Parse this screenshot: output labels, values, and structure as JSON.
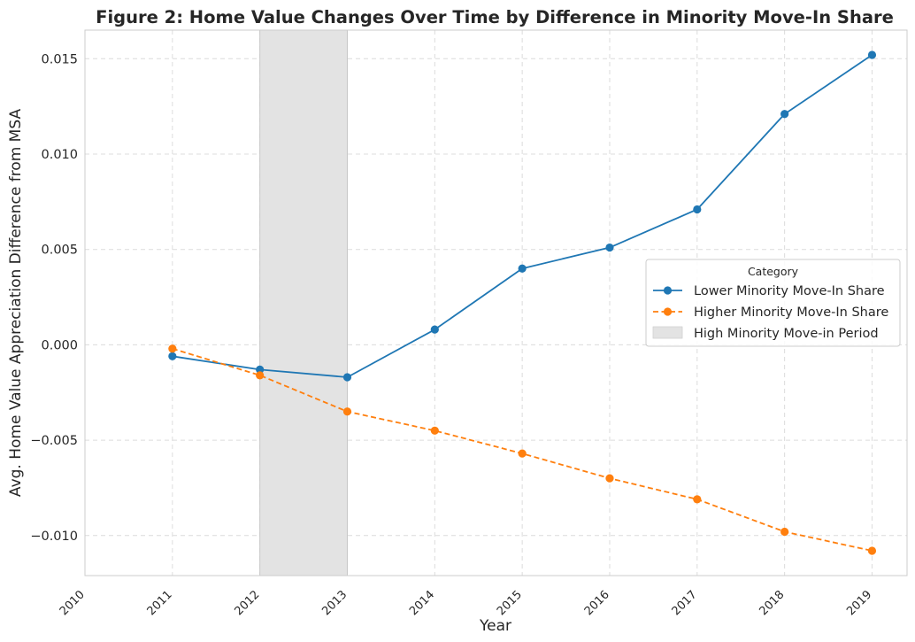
{
  "chart_data": {
    "type": "line",
    "title": "Figure 2: Home Value Changes Over Time by Difference in Minority Move-In Share",
    "xlabel": "Year",
    "ylabel": "Avg. Home Value Appreciation Difference from MSA",
    "xlim": [
      2010,
      2019.4
    ],
    "ylim": [
      -0.0121,
      0.0165
    ],
    "x_ticks": [
      "2010",
      "2011",
      "2012",
      "2013",
      "2014",
      "2015",
      "2016",
      "2017",
      "2018",
      "2019"
    ],
    "y_ticks": [
      "0.015",
      "0.010",
      "0.005",
      "0.000",
      "−0.005",
      "−0.010"
    ],
    "y_tick_values": [
      0.015,
      0.01,
      0.005,
      0.0,
      -0.005,
      -0.01
    ],
    "grid": true,
    "legend_placement": "center-right",
    "legend_title": "Category",
    "shaded_region": {
      "label": "High Minority Move-in Period",
      "x_start": 2012,
      "x_end": 2013,
      "color": "#e3e3e3"
    },
    "series": [
      {
        "name": "Lower Minority Move-In Share",
        "color": "#1f77b4",
        "linestyle": "solid",
        "x": [
          2011,
          2012,
          2013,
          2014,
          2015,
          2016,
          2017,
          2018,
          2019
        ],
        "values": [
          -0.0006,
          -0.0013,
          -0.0017,
          0.0008,
          0.004,
          0.0051,
          0.0071,
          0.0121,
          0.0152
        ]
      },
      {
        "name": "Higher Minority Move-In Share",
        "color": "#ff7f0e",
        "linestyle": "dashed",
        "x": [
          2011,
          2012,
          2013,
          2014,
          2015,
          2016,
          2017,
          2018,
          2019
        ],
        "values": [
          -0.0002,
          -0.0016,
          -0.0035,
          -0.0045,
          -0.0057,
          -0.007,
          -0.0081,
          -0.0098,
          -0.0108
        ]
      }
    ]
  }
}
